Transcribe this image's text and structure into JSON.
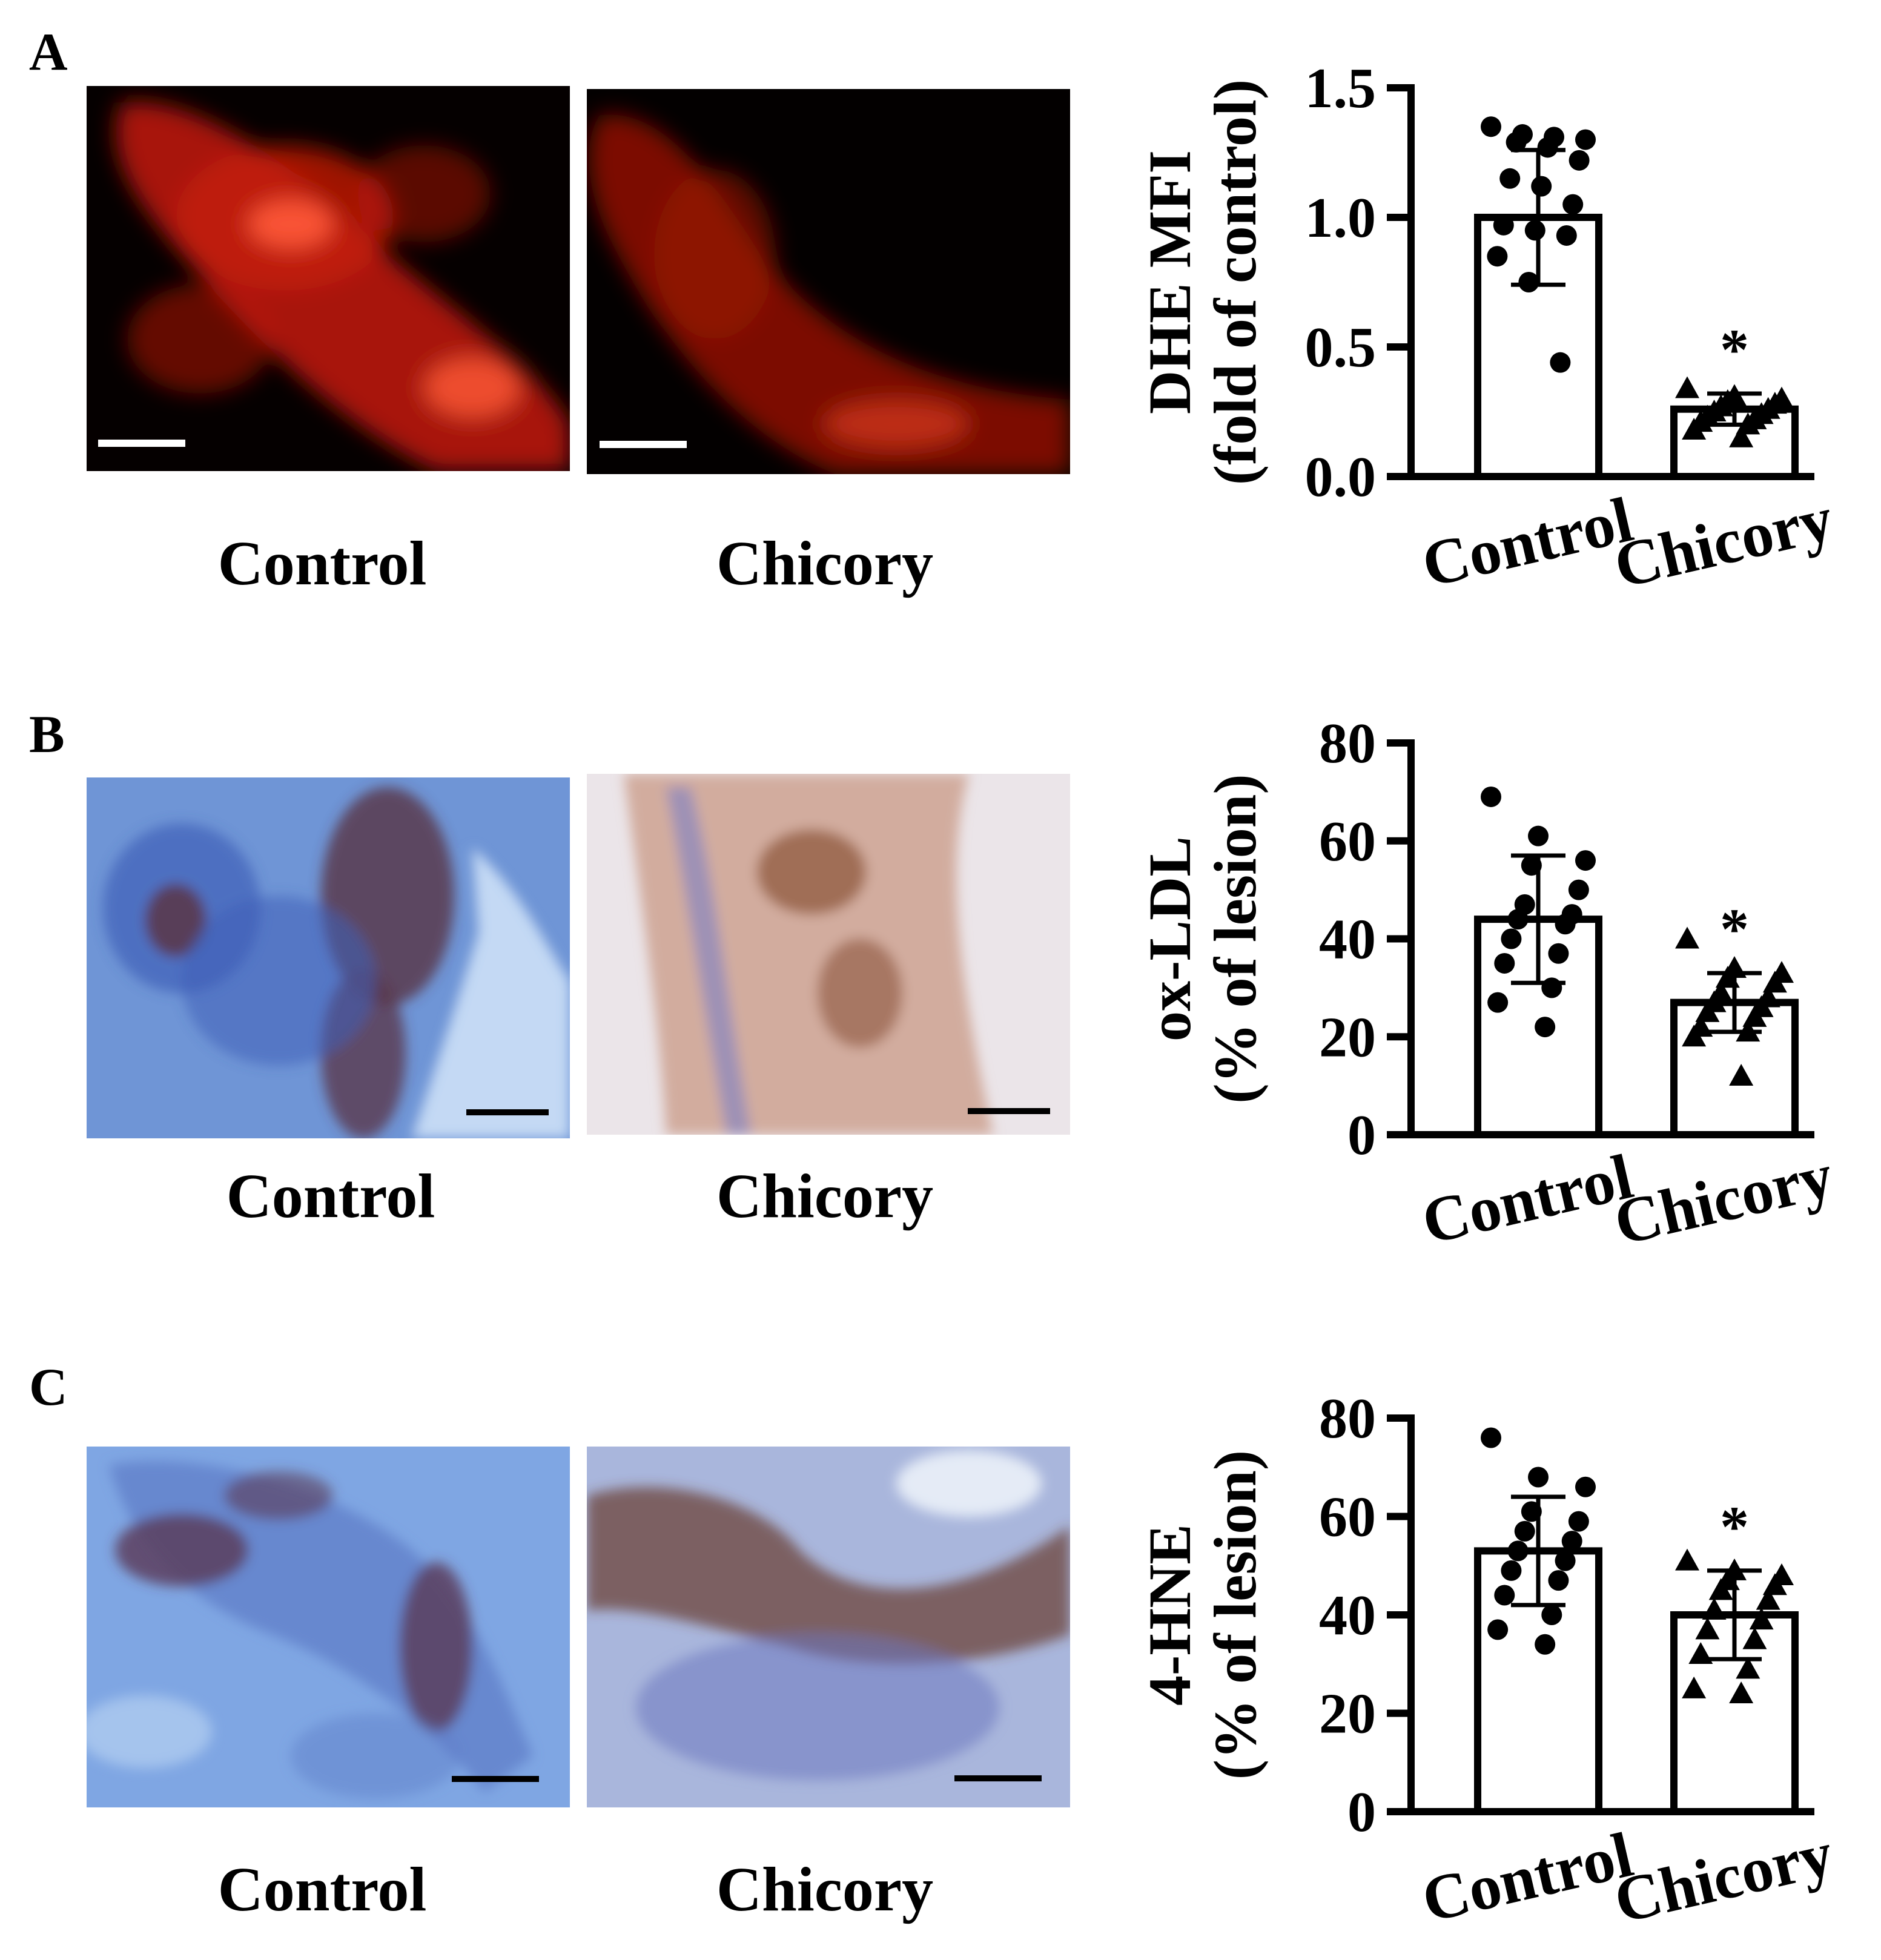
{
  "panels": [
    {
      "letter": "A",
      "images": [
        {
          "label": "Control",
          "stain": "fluorescence",
          "colors": [
            "#050000",
            "#c41a08",
            "#ff5a3a"
          ]
        },
        {
          "label": "Chicory",
          "stain": "fluorescence",
          "colors": [
            "#030000",
            "#9a1406",
            "#e8401f"
          ]
        }
      ],
      "scale_bar_color": "#ffffff"
    },
    {
      "letter": "B",
      "images": [
        {
          "label": "Control",
          "stain": "immunohistochemistry",
          "colors": [
            "#6f95d6",
            "#3f5fb8",
            "#5a3a4c",
            "#c8dcf5"
          ]
        },
        {
          "label": "Chicory",
          "stain": "immunohistochemistry",
          "colors": [
            "#ebe5e9",
            "#c99a86",
            "#8a5238",
            "#7b7fc4"
          ]
        }
      ],
      "scale_bar_color": "#000000"
    },
    {
      "letter": "C",
      "images": [
        {
          "label": "Control",
          "stain": "immunohistochemistry",
          "colors": [
            "#7fa6e3",
            "#5a78c4",
            "#5b3a55",
            "#a9c6ee"
          ]
        },
        {
          "label": "Chicory",
          "stain": "immunohistochemistry",
          "colors": [
            "#a9b6dc",
            "#6c78c0",
            "#6a3b2d",
            "#e8eef8"
          ]
        }
      ],
      "scale_bar_color": "#000000"
    }
  ],
  "chart_data": [
    {
      "type": "bar",
      "panel": "A",
      "categories": [
        "Control",
        "Chicory"
      ],
      "values": [
        1.0,
        0.26
      ],
      "sd": [
        0.26,
        0.06
      ],
      "significance": [
        "",
        "*"
      ],
      "ylabel_line1": "DHE MFI",
      "ylabel_line2": "(fold of control)",
      "ylim": [
        0,
        1.5
      ],
      "yticks": [
        "0.0",
        "0.5",
        "1.0",
        "1.5"
      ],
      "ytick_values": [
        0,
        0.5,
        1.0,
        1.5
      ],
      "markers": [
        "circle",
        "triangle"
      ],
      "points": [
        [
          1.35,
          1.32,
          1.31,
          1.3,
          1.29,
          1.27,
          1.22,
          1.15,
          1.12,
          1.05,
          0.97,
          0.95,
          0.93,
          0.85,
          0.75,
          0.44
        ],
        [
          0.34,
          0.31,
          0.3,
          0.29,
          0.28,
          0.27,
          0.26,
          0.25,
          0.24,
          0.23,
          0.22,
          0.21,
          0.2,
          0.18,
          0.15
        ]
      ]
    },
    {
      "type": "bar",
      "panel": "B",
      "categories": [
        "Control",
        "Chicory"
      ],
      "values": [
        44,
        27
      ],
      "sd": [
        13,
        6
      ],
      "significance": [
        "",
        "*"
      ],
      "ylabel_line1": "ox-LDL",
      "ylabel_line2": "(% of lesion)",
      "ylim": [
        0,
        80
      ],
      "yticks": [
        "0",
        "20",
        "40",
        "60",
        "80"
      ],
      "ytick_values": [
        0,
        20,
        40,
        60,
        80
      ],
      "markers": [
        "circle",
        "triangle"
      ],
      "points": [
        [
          69,
          61,
          56,
          55,
          50,
          47,
          45,
          44,
          43,
          40,
          37,
          35,
          30,
          27,
          22
        ],
        [
          40,
          34,
          33,
          32,
          31,
          29,
          28,
          27,
          26,
          25,
          24,
          22,
          21,
          20,
          12
        ]
      ]
    },
    {
      "type": "bar",
      "panel": "C",
      "categories": [
        "Control",
        "Chicory"
      ],
      "values": [
        53,
        40
      ],
      "sd": [
        11,
        9
      ],
      "significance": [
        "",
        "*"
      ],
      "ylabel_line1": "4-HNE",
      "ylabel_line2": "(% of lesion)",
      "ylim": [
        0,
        80
      ],
      "yticks": [
        "0",
        "20",
        "40",
        "60",
        "80"
      ],
      "ytick_values": [
        0,
        20,
        40,
        60,
        80
      ],
      "markers": [
        "circle",
        "triangle"
      ],
      "points": [
        [
          76,
          68,
          66,
          61,
          59,
          57,
          55,
          53,
          51,
          49,
          47,
          44,
          40,
          37,
          34
        ],
        [
          51,
          49,
          48,
          47,
          46,
          45,
          43,
          41,
          39,
          37,
          35,
          32,
          29,
          25,
          24
        ]
      ]
    }
  ]
}
